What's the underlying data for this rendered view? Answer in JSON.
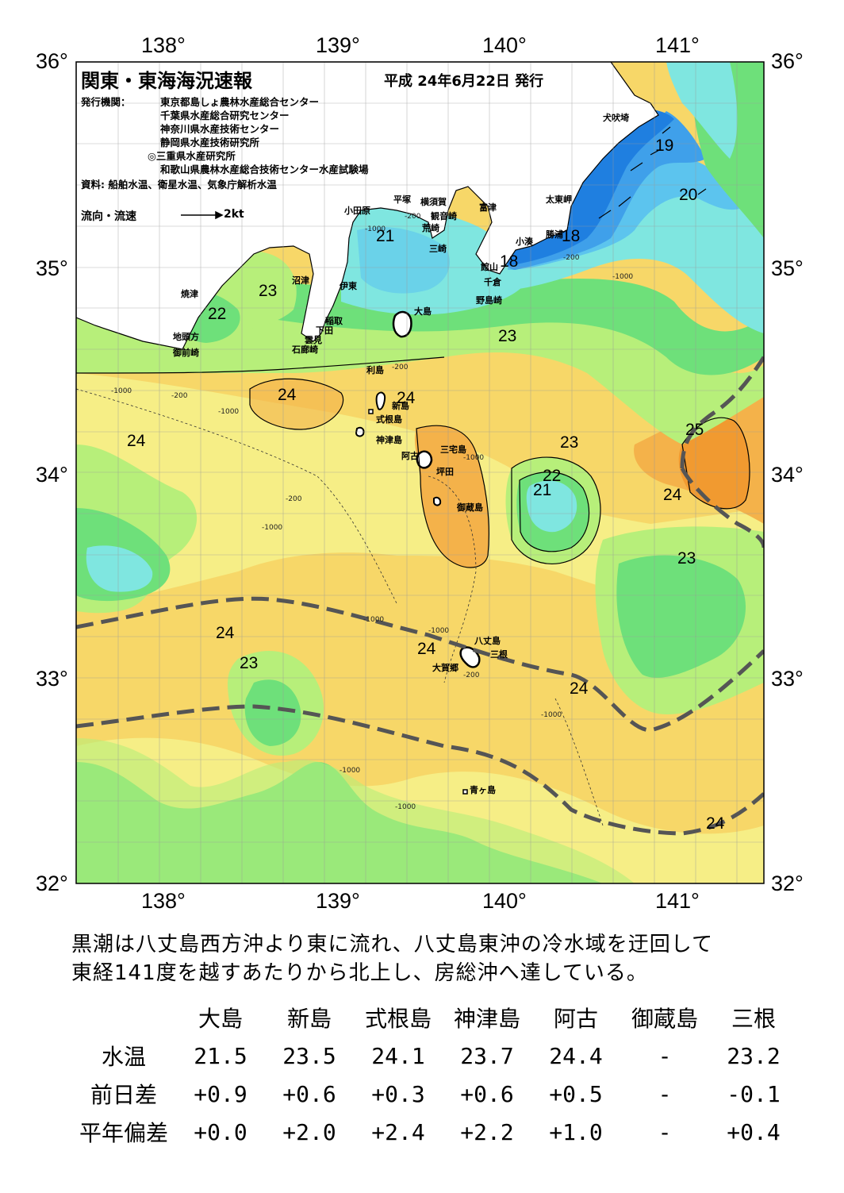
{
  "header": {
    "title": "関東・東海海況速報",
    "date": "平成 24年6月22日 発行"
  },
  "publishers": {
    "label": "発行機関：",
    "lines": [
      "東京都島しょ農林水産総合センター",
      "千葉県水産総合研究センター",
      "神奈川県水産技術センター",
      "静岡県水産技術研究所",
      "◎三重県水産研究所",
      "和歌山県農林水産総合技術センター水産試験場"
    ],
    "sources": "資料: 船舶水温、衛星水温、気象庁解析水温"
  },
  "legend": {
    "flow_label": "流向・流速",
    "speed_label": "2kt"
  },
  "axes": {
    "lon_labels": [
      "138°",
      "139°",
      "140°",
      "141°"
    ],
    "lat_labels": [
      "36°",
      "35°",
      "34°",
      "33°",
      "32°"
    ]
  },
  "places": {
    "inubosaki": "犬吠埼",
    "taitomisaki": "太東岬",
    "katsuura": "勝浦",
    "kominato": "小湊",
    "tateyama": "館山",
    "chikura": "千倉",
    "nojimazaki": "野島崎",
    "futtsu": "富津",
    "yokosuka": "横須賀",
    "kannonzaki": "観音崎",
    "arasaki": "荒崎",
    "misaki": "三崎",
    "hiratsuka": "平塚",
    "odawara": "小田原",
    "numazu": "沼津",
    "ito": "伊東",
    "inatori": "稲取",
    "shimoda": "下田",
    "kumomi": "雲見",
    "irozaki": "石廊崎",
    "yaizu": "焼津",
    "jitogata": "地頭方",
    "omaezaki": "御前崎",
    "oshima": "大島",
    "toshima": "利島",
    "niijima": "新島",
    "shikinejima": "式根島",
    "kozushima": "神津島",
    "miyakejima": "三宅島",
    "ako": "阿古",
    "tsubota": "坪田",
    "mikurajima": "御蔵島",
    "hachijojima": "八丈島",
    "mitsune": "三根",
    "okago": "大賀郷",
    "aogashima": "青ヶ島"
  },
  "isotherm_labels": [
    "19",
    "20",
    "18",
    "18",
    "21",
    "23",
    "22",
    "23",
    "24",
    "24",
    "24",
    "24",
    "23",
    "22",
    "21",
    "25",
    "24",
    "23",
    "24",
    "23",
    "24",
    "24",
    "24"
  ],
  "depth_contours": {
    "d200": "-200",
    "d1000": "-1000"
  },
  "summary": "黒潮は八丈島西方沖より東に流れ、八丈島東沖の冷水域を迂回して\n東経141度を越すあたりから北上し、房総沖へ達している。",
  "table": {
    "headers": [
      "大島",
      "新島",
      "式根島",
      "神津島",
      "阿古",
      "御蔵島",
      "三根"
    ],
    "rows": [
      {
        "label": "水温",
        "values": [
          "21.5",
          "23.5",
          "24.1",
          "23.7",
          "24.4",
          "-",
          "23.2"
        ]
      },
      {
        "label": "前日差",
        "values": [
          "+0.9",
          "+0.6",
          "+0.3",
          "+0.6",
          "+0.5",
          "-",
          "-0.1"
        ]
      },
      {
        "label": "平年偏差",
        "values": [
          "+0.0",
          "+2.0",
          "+2.4",
          "+2.2",
          "+1.0",
          "-",
          "+0.4"
        ]
      }
    ]
  },
  "colors": {
    "t18": "#1f7fe0",
    "t19": "#3fa0ea",
    "t20": "#5cc4ee",
    "t21": "#7fe6e0",
    "t22": "#6ee07a",
    "t23": "#b7ef7a",
    "t24a": "#f6ee86",
    "t24b": "#f7d768",
    "t25": "#f4b24a",
    "t26": "#f19a30",
    "kuroshio": "#555555"
  }
}
